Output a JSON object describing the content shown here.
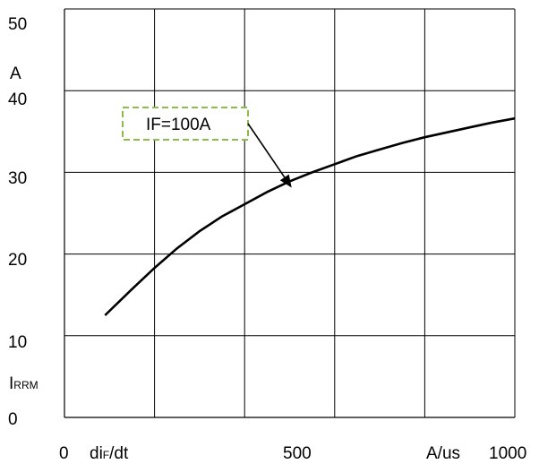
{
  "chart_data": {
    "type": "line",
    "title": "",
    "xlim": [
      0,
      1000
    ],
    "ylim": [
      0,
      50
    ],
    "x_ticks": [
      0,
      500,
      1000
    ],
    "y_ticks": [
      0,
      10,
      20,
      30,
      40,
      50
    ],
    "x_tick_labels": [
      "0",
      "500",
      "1000"
    ],
    "y_tick_labels": [
      "0",
      "10",
      "20",
      "30",
      "40",
      "50"
    ],
    "grid": true,
    "x_gridlines": [
      0,
      200,
      400,
      600,
      800,
      1000
    ],
    "xlabel": {
      "main": "di",
      "sub": "F",
      "suffix": "/dt"
    },
    "xunit": "A/us",
    "ylabel": {
      "main": "I",
      "sub": "RRM"
    },
    "yunit": "A",
    "annotation": {
      "text": "IF=100A",
      "points_to": [
        550,
        29
      ]
    },
    "series": [
      {
        "x": [
          90,
          150,
          200,
          250,
          300,
          350,
          400,
          450,
          500,
          550,
          600,
          650,
          700,
          750,
          800,
          850,
          900,
          950,
          1000
        ],
        "y": [
          12.5,
          15.7,
          18.3,
          20.7,
          22.8,
          24.6,
          26.1,
          27.6,
          28.9,
          30.0,
          31.0,
          32.0,
          32.8,
          33.6,
          34.3,
          34.9,
          35.5,
          36.1,
          36.6
        ]
      }
    ]
  }
}
